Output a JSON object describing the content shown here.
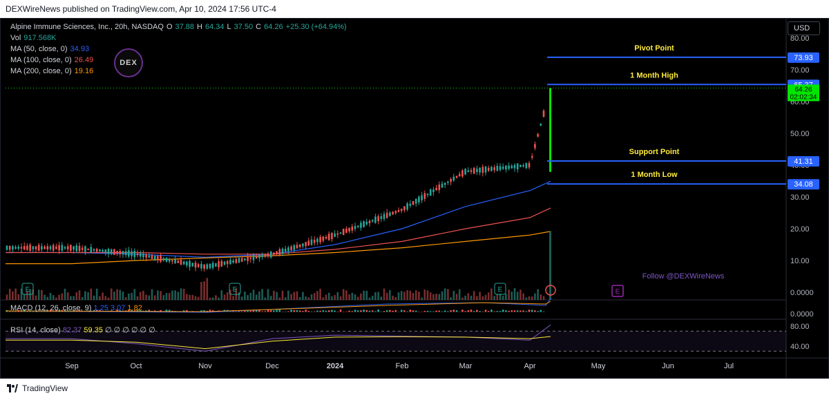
{
  "attribution": "DEXWireNews published on TradingView.com, Apr 10, 2024 17:56 UTC-4",
  "footer_brand": "TradingView",
  "currency_button": "USD",
  "logo_text": "DEX",
  "follow_text": "Follow @DEXWireNews",
  "symbol": {
    "name": "Alpine Immune Sciences, Inc., 20h, NASDAQ",
    "o_label": "O",
    "o": "37.88",
    "h_label": "H",
    "h": "64.34",
    "l_label": "L",
    "l": "37.50",
    "c_label": "C",
    "c": "64.26",
    "change": "+25.30 (+64.94%)"
  },
  "indicators": {
    "vol_label": "Vol",
    "vol": "917.568K",
    "ma50_label": "MA (50, close, 0)",
    "ma50": "34.93",
    "ma100_label": "MA (100, close, 0)",
    "ma100": "26.49",
    "ma200_label": "MA (200, close, 0)",
    "ma200": "19.16",
    "macd_label": "MACD (12, 26, close, 9)",
    "macd1": "1.25",
    "macd2": "3.07",
    "macd3": "1.82",
    "rsi_label": "RSI (14, close)",
    "rsi1": "82.37",
    "rsi2": "59.35",
    "rsi_rest": "∅ ∅ ∅ ∅ ∅ ∅"
  },
  "levels": [
    {
      "label": "Pivot Point",
      "value": "73.93",
      "price": 73.93
    },
    {
      "label": "1 Month High",
      "value": "65.37",
      "price": 65.37
    },
    {
      "label": "Support Point",
      "value": "41.31",
      "price": 41.31
    },
    {
      "label": "1 Month Low",
      "value": "34.08",
      "price": 34.08
    }
  ],
  "last_price": {
    "value": "64.26",
    "countdown": "02:02:34",
    "color": "#00e600"
  },
  "colors": {
    "up": "#26a69a",
    "down": "#ef5350",
    "ma50": "#2962ff",
    "ma100": "#ef5350",
    "ma200": "#ff9800",
    "level": "#2962ff",
    "level_text": "#ffeb3b"
  },
  "chart_data": [
    {
      "type": "line",
      "title": "Alpine Immune Sciences, Inc., 20h, NASDAQ",
      "x_ticks": [
        "Sep",
        "Oct",
        "Nov",
        "Dec",
        "2024",
        "Feb",
        "Mar",
        "Apr",
        "May",
        "Jun",
        "Jul"
      ],
      "y_ticks": [
        "80.00",
        "70.00",
        "60.00",
        "50.00",
        "40.00",
        "30.00",
        "20.00",
        "10.00",
        "0.0000"
      ],
      "ylim": [
        0,
        80
      ],
      "scale": "linear",
      "series": [
        {
          "name": "Price",
          "x": [
            "Sep",
            "Oct",
            "Nov",
            "Dec",
            "2024",
            "Feb",
            "Mar",
            "Apr",
            "Apr 10"
          ],
          "values": [
            14,
            12,
            8,
            12,
            18,
            26,
            38,
            40,
            64.26
          ]
        },
        {
          "name": "MA (50, close, 0)",
          "x": [
            "Sep",
            "Oct",
            "Nov",
            "Dec",
            "2024",
            "Feb",
            "Mar",
            "Apr",
            "Apr 10"
          ],
          "values": [
            12.5,
            12,
            11,
            12,
            15,
            20,
            27,
            32,
            34.93
          ]
        },
        {
          "name": "MA (100, close, 0)",
          "x": [
            "Sep",
            "Oct",
            "Nov",
            "Dec",
            "2024",
            "Feb",
            "Mar",
            "Apr",
            "Apr 10"
          ],
          "values": [
            12.5,
            12.5,
            12,
            12,
            13.5,
            16,
            20,
            23.5,
            26.49
          ]
        },
        {
          "name": "MA (200, close, 0)",
          "x": [
            "Sep",
            "Oct",
            "Nov",
            "Dec",
            "2024",
            "Feb",
            "Mar",
            "Apr",
            "Apr 10"
          ],
          "values": [
            9,
            10,
            10.8,
            11.5,
            12.5,
            14,
            16,
            18,
            19.16
          ]
        }
      ],
      "levels": [
        73.93,
        65.37,
        41.31,
        34.08
      ]
    },
    {
      "type": "line",
      "title": "RSI (14, close)",
      "y_ticks": [
        "80.00",
        "40.00"
      ],
      "series": [
        {
          "name": "RSI",
          "x": [
            "Sep",
            "Oct",
            "Nov",
            "Dec",
            "2024",
            "Feb",
            "Mar",
            "Apr",
            "Apr 10"
          ],
          "values": [
            55,
            45,
            30,
            55,
            62,
            60,
            58,
            52,
            82.37
          ]
        },
        {
          "name": "RSI MA",
          "x": [
            "Sep",
            "Oct",
            "Nov",
            "Dec",
            "2024",
            "Feb",
            "Mar",
            "Apr",
            "Apr 10"
          ],
          "values": [
            52,
            48,
            35,
            50,
            58,
            59,
            58,
            55,
            59.35
          ]
        }
      ]
    },
    {
      "type": "bar",
      "title": "MACD (12, 26, close, 9)",
      "y_ticks": [
        "0.0000"
      ]
    }
  ]
}
